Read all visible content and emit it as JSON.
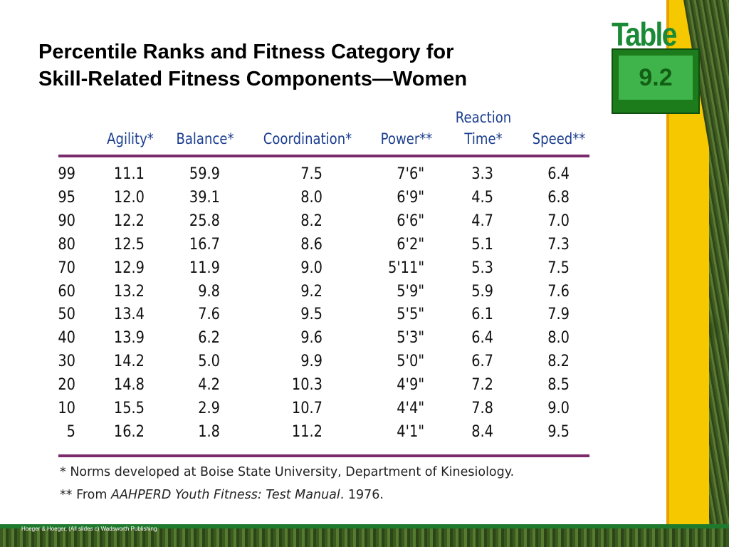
{
  "title": {
    "line1": "Percentile Ranks and Fitness Category for",
    "line2": "Skill-Related Fitness Components—Women"
  },
  "badge": {
    "word": "Table",
    "number": "9.2"
  },
  "table": {
    "headers": [
      "Agility*",
      "Balance*",
      "Coordination*",
      "Power**",
      "Reaction",
      "Time*",
      "Speed**"
    ],
    "rows": [
      [
        "99",
        "11.1",
        "59.9",
        "7.5",
        "7'6\"",
        "3.3",
        "6.4"
      ],
      [
        "95",
        "12.0",
        "39.1",
        "8.0",
        "6'9\"",
        "4.5",
        "6.8"
      ],
      [
        "90",
        "12.2",
        "25.8",
        "8.2",
        "6'6\"",
        "4.7",
        "7.0"
      ],
      [
        "80",
        "12.5",
        "16.7",
        "8.6",
        "6'2\"",
        "5.1",
        "7.3"
      ],
      [
        "70",
        "12.9",
        "11.9",
        "9.0",
        "5'11\"",
        "5.3",
        "7.5"
      ],
      [
        "60",
        "13.2",
        "9.8",
        "9.2",
        "5'9\"",
        "5.9",
        "7.6"
      ],
      [
        "50",
        "13.4",
        "7.6",
        "9.5",
        "5'5\"",
        "6.1",
        "7.9"
      ],
      [
        "40",
        "13.9",
        "6.2",
        "9.6",
        "5'3\"",
        "6.4",
        "8.0"
      ],
      [
        "30",
        "14.2",
        "5.0",
        "9.9",
        "5'0\"",
        "6.7",
        "8.2"
      ],
      [
        "20",
        "14.8",
        "4.2",
        "10.3",
        "4'9\"",
        "7.2",
        "8.5"
      ],
      [
        "10",
        "15.5",
        "2.9",
        "10.7",
        "4'4\"",
        "7.8",
        "9.0"
      ],
      [
        "5",
        "16.2",
        "1.8",
        "11.2",
        "4'1\"",
        "8.4",
        "9.5"
      ]
    ]
  },
  "notes": {
    "note1": "* Norms developed at Boise State University, Department of Kinesiology.",
    "note2_prefix": "** From ",
    "note2_title": "AAHPERD Youth Fitness: Test Manual",
    "note2_suffix": ". 1976."
  },
  "footer": {
    "copyright": "Hoeger & Hoeger, (All slides c) Wadsworth Publishing"
  },
  "colors": {
    "header_text": "#1a3d8f",
    "rule": "#7b2a6b",
    "badge_green": "#3fb44a",
    "stripe_yellow": "#f6c800"
  }
}
